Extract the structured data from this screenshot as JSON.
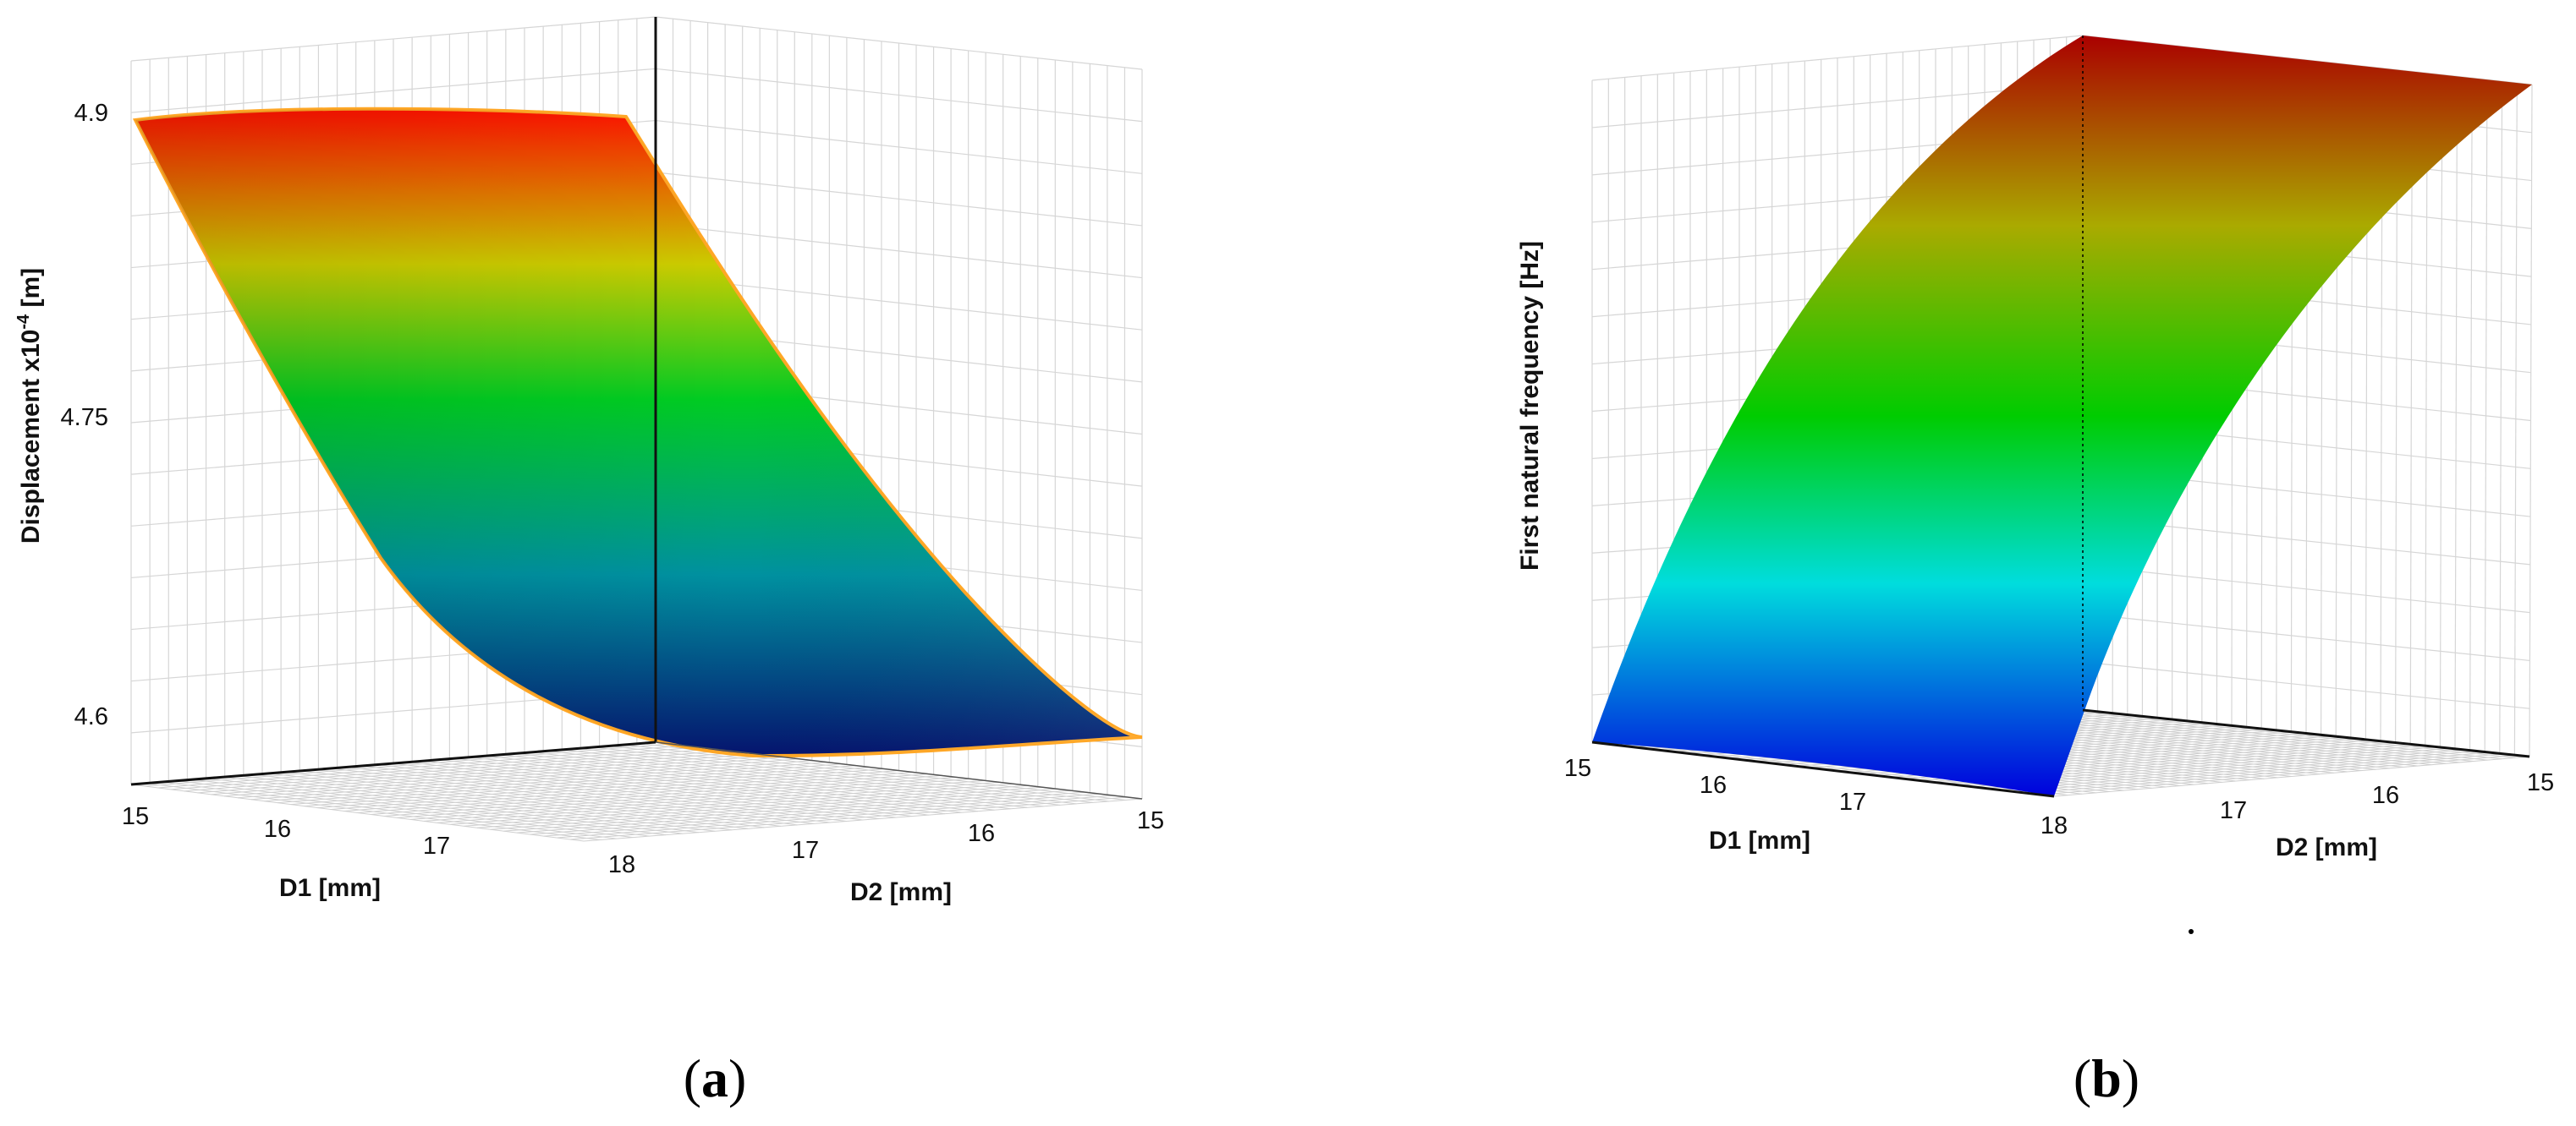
{
  "chart_data": [
    {
      "panel": "(a)",
      "type": "surface",
      "x_label": "D1 [mm]",
      "y_label": "D2 [mm]",
      "z_label": "Displacement x10",
      "z_label_exponent": "-4",
      "z_label_unit": " [m]",
      "x_ticks": [
        "15",
        "16",
        "17",
        "18"
      ],
      "y_ticks": [
        "15",
        "16",
        "17"
      ],
      "z_ticks": [
        "4.9",
        "4.75",
        "4.6"
      ],
      "x_range": [
        15,
        18
      ],
      "y_range": [
        15,
        18
      ],
      "z_range": [
        4.6,
        4.9
      ],
      "corner_values": [
        {
          "D1": 15,
          "D2": 18,
          "z": 4.9
        },
        {
          "D1": 18,
          "D2": 18,
          "z": 4.9
        },
        {
          "D1": 15,
          "D2": 15,
          "z": 4.59
        },
        {
          "D1": 18,
          "D2": 15,
          "z": 4.59
        }
      ],
      "colormap": [
        "#05146e",
        "#0091a0",
        "#00cc22",
        "#cccc00",
        "#ff1100"
      ]
    },
    {
      "panel": "(b)",
      "type": "surface",
      "x_label": "D1 [mm]",
      "y_label": "D2 [mm]",
      "z_label": "First natural frequency [Hz]",
      "x_ticks": [
        "15",
        "16",
        "17",
        "18"
      ],
      "y_ticks": [
        "15",
        "16",
        "17"
      ],
      "z_ticks": [],
      "x_range": [
        15,
        18
      ],
      "y_range": [
        15,
        18
      ],
      "colormap": [
        "#0000dd",
        "#00dddd",
        "#00cc00",
        "#aaaa00",
        "#aa0000"
      ]
    }
  ],
  "captions": {
    "a_open": "(",
    "a_letter": "a",
    "a_close": ")",
    "b_open": "(",
    "b_letter": "b",
    "b_close": ")"
  }
}
